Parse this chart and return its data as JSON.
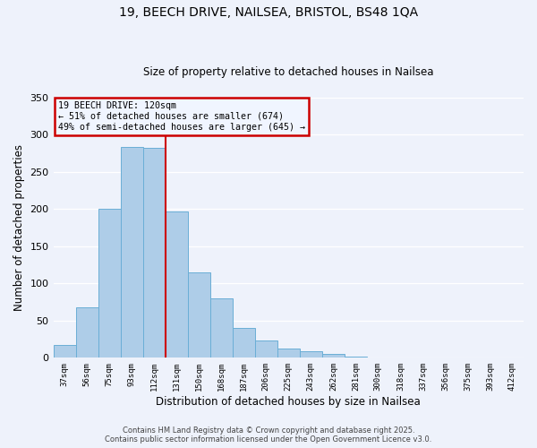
{
  "title": "19, BEECH DRIVE, NAILSEA, BRISTOL, BS48 1QA",
  "subtitle": "Size of property relative to detached houses in Nailsea",
  "xlabel": "Distribution of detached houses by size in Nailsea",
  "ylabel": "Number of detached properties",
  "categories": [
    "37sqm",
    "56sqm",
    "75sqm",
    "93sqm",
    "112sqm",
    "131sqm",
    "150sqm",
    "168sqm",
    "187sqm",
    "206sqm",
    "225sqm",
    "243sqm",
    "262sqm",
    "281sqm",
    "300sqm",
    "318sqm",
    "337sqm",
    "356sqm",
    "375sqm",
    "393sqm",
    "412sqm"
  ],
  "values": [
    17,
    68,
    201,
    284,
    283,
    197,
    115,
    80,
    40,
    23,
    13,
    9,
    5,
    2,
    1,
    0,
    1,
    0,
    0,
    0,
    1
  ],
  "bar_color": "#aecde8",
  "bar_edge_color": "#6aaed6",
  "vline_x_index": 4.5,
  "vline_color": "#cc0000",
  "annotation_title": "19 BEECH DRIVE: 120sqm",
  "annotation_line1": "← 51% of detached houses are smaller (674)",
  "annotation_line2": "49% of semi-detached houses are larger (645) →",
  "annotation_box_color": "#cc0000",
  "annotation_bg_color": "#f0f5ff",
  "ylim": [
    0,
    350
  ],
  "yticks": [
    0,
    50,
    100,
    150,
    200,
    250,
    300,
    350
  ],
  "footer_line1": "Contains HM Land Registry data © Crown copyright and database right 2025.",
  "footer_line2": "Contains public sector information licensed under the Open Government Licence v3.0.",
  "bg_color": "#eef2fb",
  "plot_bg_color": "#eef2fb",
  "title_fontsize": 10,
  "subtitle_fontsize": 8.5,
  "xlabel_fontsize": 8.5,
  "ylabel_fontsize": 8.5
}
